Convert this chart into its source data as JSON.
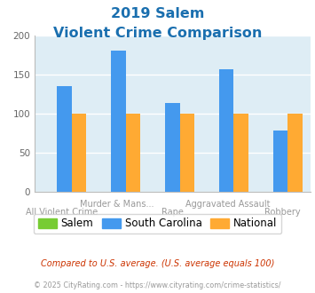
{
  "title_line1": "2019 Salem",
  "title_line2": "Violent Crime Comparison",
  "title_color": "#1a6faf",
  "cat_top": [
    "",
    "Murder & Mans...",
    "",
    "Aggravated Assault",
    ""
  ],
  "cat_bottom": [
    "All Violent Crime",
    "",
    "Rape",
    "",
    "Robbery"
  ],
  "salem_values": [
    0,
    0,
    0,
    0,
    0
  ],
  "sc_values": [
    135,
    180,
    113,
    157,
    78
  ],
  "national_values": [
    100,
    100,
    100,
    100,
    100
  ],
  "salem_color": "#77cc33",
  "sc_color": "#4499ee",
  "national_color": "#ffaa33",
  "ylim": [
    0,
    200
  ],
  "yticks": [
    0,
    50,
    100,
    150,
    200
  ],
  "plot_bg": "#deedf5",
  "footer1": "Compared to U.S. average. (U.S. average equals 100)",
  "footer1_color": "#cc3300",
  "footer2": "© 2025 CityRating.com - https://www.cityrating.com/crime-statistics/",
  "footer2_color": "#999999",
  "legend_labels": [
    "Salem",
    "South Carolina",
    "National"
  ]
}
